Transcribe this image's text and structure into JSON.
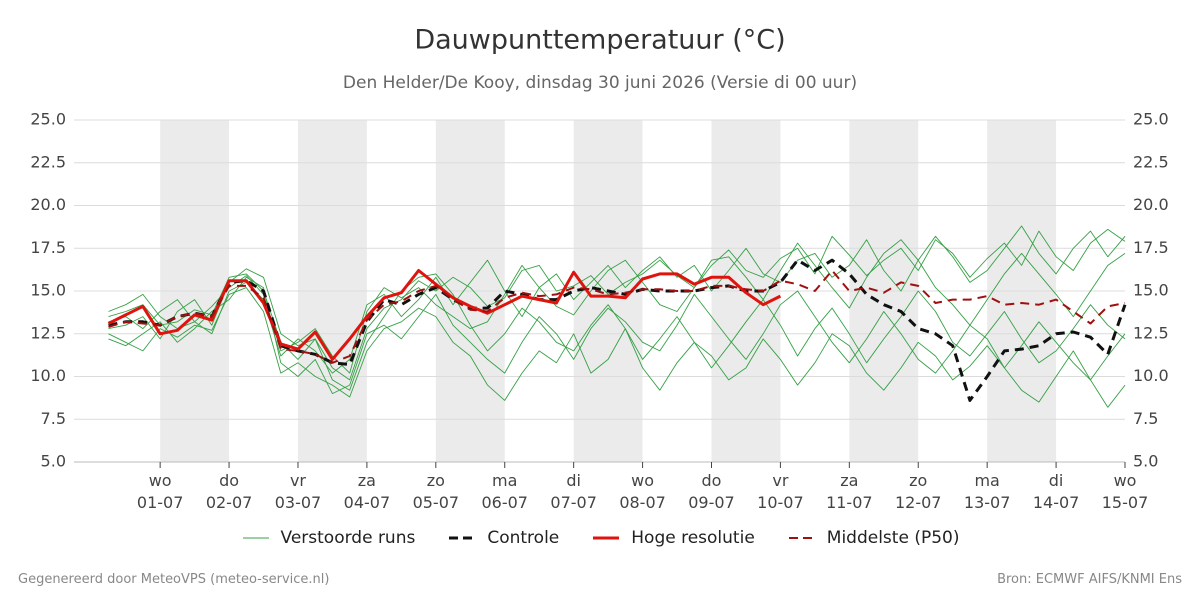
{
  "chart_data": {
    "type": "line",
    "title": "Dauwpunttemperatuur (°C)",
    "subtitle": "Den Helder/De Kooy, dinsdag 30 juni 2026 (Versie di 00 uur)",
    "xlim": [
      -0.25,
      15
    ],
    "ylim": [
      5,
      25
    ],
    "grid": true,
    "legend": "bottom",
    "yticks": [
      {
        "value": 5,
        "label": "5.0"
      },
      7.5,
      {
        "value": 10,
        "label": "10.0"
      },
      12.5,
      {
        "value": 15,
        "label": "15.0"
      },
      17.5,
      {
        "value": 20,
        "label": "20.0"
      },
      22.5,
      {
        "value": 25,
        "label": "25.0"
      }
    ],
    "xticks": [
      {
        "value": 1,
        "label": "wo\n01-07"
      },
      {
        "value": 2,
        "label": "do\n02-07"
      },
      {
        "value": 3,
        "label": "vr\n03-07"
      },
      {
        "value": 4,
        "label": "za\n04-07"
      },
      {
        "value": 5,
        "label": "zo\n05-07"
      },
      {
        "value": 6,
        "label": "ma\n06-07"
      },
      {
        "value": 7,
        "label": "di\n07-07"
      },
      {
        "value": 8,
        "label": "wo\n08-07"
      },
      {
        "value": 9,
        "label": "do\n09-07"
      },
      {
        "value": 10,
        "label": "vr\n10-07"
      },
      {
        "value": 11,
        "label": "za\n11-07"
      },
      {
        "value": 12,
        "label": "zo\n12-07"
      },
      {
        "value": 13,
        "label": "ma\n13-07"
      },
      {
        "value": 14,
        "label": "di\n14-07"
      },
      {
        "value": 15,
        "label": "wo\n15-07"
      }
    ],
    "x": [
      0.25,
      0.5,
      0.75,
      1,
      1.25,
      1.5,
      1.75,
      2,
      2.25,
      2.5,
      2.75,
      3,
      3.25,
      3.5,
      3.75,
      4,
      4.25,
      4.5,
      4.75,
      5,
      5.25,
      5.5,
      5.75,
      6,
      6.25,
      6.5,
      6.75,
      7,
      7.25,
      7.5,
      7.75,
      8,
      8.25,
      8.5,
      8.75,
      9,
      9.25,
      9.5,
      9.75,
      10,
      10.25,
      10.5,
      10.75,
      11,
      11.25,
      11.5,
      11.75,
      12,
      12.25,
      12.5,
      12.75,
      13,
      13.25,
      13.5,
      13.75,
      14,
      14.25,
      14.5,
      14.75,
      15
    ],
    "ensemble": {
      "name": "Verstoorde runs",
      "color": "#36a046",
      "members": [
        [
          13.5,
          13.8,
          14.2,
          13.0,
          13.2,
          13.9,
          13.6,
          15.8,
          16.0,
          15.0,
          12.0,
          11.0,
          12.2,
          10.5,
          9.8,
          12.8,
          14.0,
          14.5,
          15.6,
          15.0,
          15.8,
          15.2,
          14.1,
          14.6,
          16.2,
          16.5,
          15.0,
          15.3,
          15.9,
          14.8,
          15.5,
          16.0,
          16.8,
          15.9,
          15.2,
          16.5,
          17.4,
          16.2,
          15.8,
          16.9,
          17.5,
          16.0,
          18.2,
          17.1,
          15.9,
          16.8,
          17.5,
          16.2,
          18.0,
          17.2,
          15.8,
          16.9,
          17.8,
          16.5,
          18.5,
          17.0,
          16.2,
          17.8,
          18.6,
          17.9
        ],
        [
          12.5,
          12.0,
          11.5,
          12.8,
          12.3,
          13.0,
          12.7,
          14.8,
          15.2,
          13.8,
          10.2,
          10.8,
          10.0,
          9.5,
          8.8,
          11.5,
          12.8,
          13.2,
          14.0,
          13.5,
          12.0,
          11.2,
          9.5,
          8.6,
          10.2,
          11.5,
          10.8,
          12.5,
          10.2,
          11.0,
          12.8,
          10.5,
          9.2,
          10.8,
          12.0,
          11.2,
          9.8,
          10.5,
          12.2,
          11.0,
          9.5,
          10.8,
          12.5,
          11.8,
          10.2,
          9.2,
          10.5,
          12.0,
          11.2,
          9.8,
          10.6,
          11.8,
          10.5,
          9.2,
          8.5,
          10.0,
          11.5,
          9.8,
          8.2,
          9.5
        ],
        [
          13.8,
          14.2,
          14.8,
          13.5,
          12.8,
          13.2,
          14.1,
          15.2,
          15.9,
          14.8,
          11.5,
          12.0,
          12.8,
          11.2,
          10.2,
          13.8,
          15.2,
          14.6,
          15.2,
          14.2,
          13.5,
          12.8,
          13.2,
          14.8,
          16.5,
          15.2,
          14.1,
          13.6,
          15.0,
          16.2,
          16.8,
          15.5,
          14.2,
          13.8,
          15.2,
          16.8,
          17.0,
          15.8,
          14.5,
          16.2,
          17.8,
          16.5,
          15.2,
          14.0,
          15.8,
          17.2,
          18.0,
          16.8,
          15.2,
          14.2,
          13.0,
          14.5,
          16.0,
          17.2,
          16.0,
          14.8,
          13.5,
          15.0,
          16.5,
          17.2
        ],
        [
          12.8,
          13.0,
          13.5,
          12.2,
          13.8,
          14.5,
          13.0,
          15.5,
          16.3,
          15.8,
          12.5,
          11.8,
          12.2,
          9.8,
          9.2,
          12.0,
          13.5,
          15.0,
          15.8,
          16.0,
          14.8,
          13.0,
          11.5,
          12.5,
          14.0,
          13.2,
          12.0,
          11.5,
          13.0,
          14.2,
          12.8,
          11.0,
          12.2,
          13.5,
          12.0,
          10.5,
          11.8,
          13.2,
          14.5,
          13.0,
          11.2,
          12.8,
          14.0,
          12.5,
          10.8,
          12.2,
          13.5,
          15.0,
          13.8,
          12.0,
          11.2,
          12.5,
          13.8,
          12.2,
          10.8,
          11.5,
          12.8,
          14.2,
          13.0,
          12.2
        ],
        [
          13.2,
          13.5,
          12.8,
          13.8,
          14.5,
          13.2,
          12.5,
          15.0,
          15.5,
          14.5,
          11.2,
          12.2,
          11.5,
          10.2,
          11.0,
          14.2,
          14.8,
          13.5,
          14.5,
          15.8,
          14.2,
          15.5,
          16.8,
          15.0,
          13.5,
          15.2,
          16.0,
          14.5,
          15.5,
          16.5,
          15.2,
          16.2,
          17.0,
          15.8,
          16.5,
          15.0,
          16.2,
          17.5,
          16.0,
          15.5,
          16.8,
          17.2,
          15.8,
          16.5,
          18.0,
          16.2,
          15.0,
          16.8,
          18.2,
          17.0,
          15.5,
          16.2,
          17.5,
          18.8,
          17.2,
          16.0,
          17.5,
          18.5,
          17.0,
          18.2
        ],
        [
          12.2,
          11.8,
          12.5,
          13.2,
          12.0,
          12.8,
          13.8,
          14.5,
          15.8,
          15.2,
          10.8,
          10.0,
          11.0,
          9.0,
          9.5,
          12.5,
          13.0,
          12.2,
          13.5,
          14.8,
          13.0,
          12.0,
          11.0,
          10.2,
          12.0,
          13.5,
          12.5,
          11.0,
          12.8,
          14.0,
          13.2,
          12.0,
          11.5,
          13.0,
          14.8,
          13.5,
          12.2,
          11.0,
          12.5,
          14.2,
          15.0,
          13.5,
          12.0,
          10.8,
          12.2,
          13.8,
          12.5,
          11.0,
          10.2,
          11.5,
          13.0,
          12.2,
          10.5,
          11.8,
          13.2,
          12.0,
          10.8,
          9.8,
          11.2,
          12.5
        ]
      ]
    },
    "series": [
      {
        "name": "Controle",
        "color": "#111111",
        "dash": true,
        "width": 3,
        "values": [
          13.0,
          13.2,
          13.2,
          13.0,
          13.5,
          13.7,
          13.5,
          15.5,
          15.6,
          15.0,
          11.8,
          11.5,
          11.3,
          10.8,
          10.7,
          13.2,
          14.5,
          14.2,
          14.8,
          15.2,
          14.5,
          14.0,
          14.0,
          15.0,
          14.8,
          14.5,
          14.5,
          15.0,
          15.2,
          15.0,
          14.8,
          15.1,
          15.0,
          15.0,
          15.0,
          15.2,
          15.3,
          15.0,
          15.0,
          15.5,
          16.8,
          16.2,
          16.8,
          16.0,
          14.8,
          14.2,
          13.8,
          12.8,
          12.5,
          11.8,
          8.6,
          10.0,
          11.5,
          11.6,
          11.8,
          12.5,
          12.6,
          12.3,
          11.3,
          14.2
        ]
      },
      {
        "name": "Hoge resolutie",
        "color": "#e0140f",
        "dash": false,
        "width": 3,
        "values": [
          13.1,
          13.6,
          14.1,
          12.5,
          12.7,
          13.6,
          13.3,
          15.6,
          15.6,
          14.3,
          11.9,
          11.6,
          12.6,
          11.0,
          12.2,
          13.5,
          14.6,
          14.9,
          16.2,
          15.4,
          14.6,
          14.1,
          13.7,
          14.2,
          14.7,
          14.5,
          14.3,
          16.1,
          14.7,
          14.7,
          14.6,
          15.7,
          16.0,
          16.0,
          15.4,
          15.8,
          15.8,
          14.9,
          14.2,
          14.7,
          null,
          null,
          null,
          null,
          null,
          null,
          null,
          null,
          null,
          null,
          null,
          null,
          null,
          null,
          null,
          null,
          null,
          null,
          null,
          null
        ]
      },
      {
        "name": "Middelste (P50)",
        "color": "#a01010",
        "dash": true,
        "width": 2,
        "values": [
          12.9,
          13.2,
          13.1,
          13.0,
          13.5,
          13.7,
          13.5,
          15.3,
          15.3,
          14.6,
          11.6,
          11.5,
          11.3,
          10.8,
          11.2,
          13.3,
          14.2,
          14.4,
          15.0,
          15.3,
          14.5,
          13.9,
          13.8,
          14.6,
          14.9,
          14.7,
          14.8,
          15.2,
          15.1,
          14.8,
          14.9,
          15.1,
          15.1,
          15.0,
          15.0,
          15.3,
          15.3,
          15.1,
          15.0,
          15.6,
          15.4,
          15.0,
          16.2,
          15.0,
          15.2,
          14.9,
          15.5,
          15.3,
          14.3,
          14.5,
          14.5,
          14.7,
          14.2,
          14.3,
          14.2,
          14.5,
          13.8,
          13.1,
          14.1,
          14.3
        ]
      }
    ]
  },
  "footer": {
    "left": "Gegenereerd door MeteoVPS (meteo-service.nl)",
    "right": "Bron: ECMWF AIFS/KNMI Ens"
  }
}
